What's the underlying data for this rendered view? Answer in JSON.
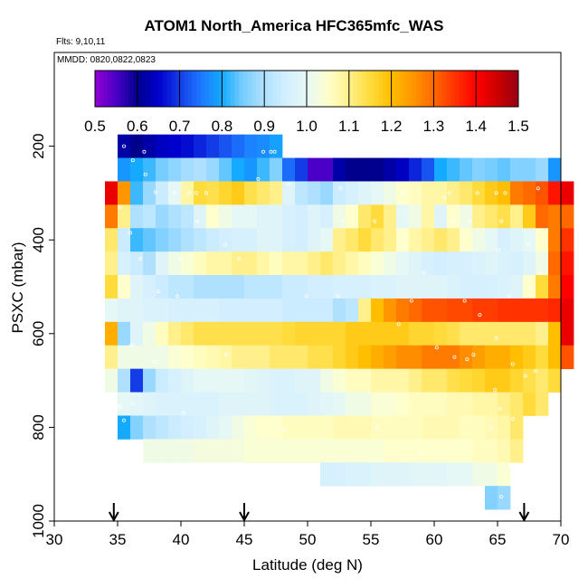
{
  "chart_data": {
    "type": "heatmap",
    "title": "ATOM1 North_America HFC365mfc_WAS",
    "flights_note": "Flts: 9,10,11",
    "dates_note": "MMDD: 0820,0822,0823",
    "xlabel": "Latitude (deg N)",
    "ylabel": "PSXC (mbar)",
    "xlim": [
      30,
      70
    ],
    "ylim": [
      1000,
      0
    ],
    "x_ticks": [
      "30",
      "35",
      "40",
      "45",
      "50",
      "55",
      "60",
      "65",
      "70"
    ],
    "y_ticks": [
      "200",
      "400",
      "600",
      "800",
      "1000"
    ],
    "colorbar": {
      "range": [
        0.5,
        1.5
      ],
      "ticks": [
        "0.5",
        "0.6",
        "0.7",
        "0.8",
        "0.9",
        "1.0",
        "1.1",
        "1.2",
        "1.3",
        "1.4",
        "1.5"
      ]
    },
    "arrow_latitudes": [
      34.7,
      45,
      67.1
    ],
    "bin_size": {
      "lat": 1,
      "pressure_mbar": 50
    },
    "rows": [
      {
        "p_top": 175,
        "p_bot": 225,
        "lat0": 35,
        "values": [
          0.62,
          0.6,
          0.62,
          0.64,
          0.65,
          0.66,
          0.68,
          0.7,
          0.72,
          0.74,
          0.76,
          0.77,
          0.79
        ]
      },
      {
        "p_top": 225,
        "p_bot": 275,
        "lat0": 35,
        "values": [
          0.78,
          0.8,
          0.82,
          0.85,
          0.87,
          0.89,
          0.9,
          0.88,
          0.84,
          0.8,
          0.78,
          0.82,
          0.86,
          0.74,
          0.7,
          0.55,
          0.55,
          0.62,
          0.6,
          0.6,
          0.6,
          0.62,
          0.64,
          0.68,
          0.72,
          0.8,
          0.82,
          0.84,
          0.86,
          0.85,
          0.84,
          0.86,
          0.86,
          0.88,
          0.78
        ]
      },
      {
        "p_top": 275,
        "p_bot": 325,
        "lat0": 34,
        "values": [
          1.42,
          1.25,
          0.82,
          0.88,
          0.94,
          1.0,
          1.08,
          1.15,
          1.14,
          1.16,
          1.18,
          1.14,
          1.12,
          1.1,
          0.98,
          0.92,
          0.9,
          0.88,
          0.94,
          0.96,
          0.98,
          1.0,
          1.02,
          1.05,
          1.06,
          1.08,
          1.08,
          1.1,
          1.12,
          1.15,
          1.18,
          1.2,
          1.28,
          1.3,
          1.32,
          1.38,
          1.42
        ]
      },
      {
        "p_top": 325,
        "p_bot": 375,
        "lat0": 34,
        "values": [
          1.28,
          1.1,
          0.9,
          0.92,
          0.88,
          0.9,
          0.92,
          0.98,
          1.05,
          1.02,
          1.0,
          1.0,
          0.98,
          0.98,
          0.96,
          0.95,
          0.98,
          0.96,
          1.02,
          1.05,
          1.12,
          1.15,
          1.1,
          1.0,
          1.02,
          1.08,
          0.98,
          1.05,
          1.02,
          1.1,
          1.12,
          1.14,
          1.1,
          1.18,
          1.3,
          1.28,
          1.3
        ]
      },
      {
        "p_top": 375,
        "p_bot": 425,
        "lat0": 34,
        "values": [
          1.12,
          0.94,
          0.82,
          0.84,
          0.86,
          0.88,
          0.9,
          0.92,
          0.94,
          0.95,
          0.96,
          0.96,
          0.98,
          0.98,
          0.96,
          0.95,
          0.98,
          1.0,
          1.1,
          1.12,
          1.15,
          1.12,
          1.1,
          1.05,
          1.08,
          1.1,
          1.12,
          1.1,
          1.05,
          1.02,
          1.0,
          0.96,
          0.98,
          1.0,
          1.05,
          1.28,
          1.35
        ]
      },
      {
        "p_top": 425,
        "p_bot": 475,
        "lat0": 34,
        "values": [
          1.1,
          0.96,
          0.94,
          0.9,
          0.98,
          1.02,
          1.04,
          1.06,
          1.08,
          1.08,
          1.1,
          1.1,
          1.08,
          1.06,
          1.08,
          1.08,
          1.1,
          1.12,
          1.1,
          1.08,
          1.06,
          1.04,
          1.02,
          1.0,
          0.98,
          0.96,
          0.95,
          0.96,
          0.96,
          0.97,
          0.98,
          0.97,
          0.96,
          0.98,
          1.02,
          1.3,
          1.38
        ]
      },
      {
        "p_top": 475,
        "p_bot": 525,
        "lat0": 34,
        "values": [
          1.15,
          1.05,
          0.98,
          0.96,
          0.94,
          0.92,
          0.92,
          0.9,
          0.9,
          0.9,
          0.9,
          0.92,
          0.92,
          0.92,
          0.94,
          0.94,
          0.95,
          0.95,
          0.96,
          0.96,
          0.96,
          0.97,
          0.97,
          0.98,
          0.98,
          0.98,
          0.98,
          0.97,
          0.96,
          0.96,
          0.96,
          0.97,
          0.98,
          1.05,
          1.15,
          1.28,
          1.4
        ]
      },
      {
        "p_top": 525,
        "p_bot": 575,
        "lat0": 34,
        "values": [
          1.0,
          0.98,
          0.98,
          0.97,
          0.97,
          0.96,
          0.96,
          0.96,
          0.96,
          0.95,
          0.95,
          0.95,
          0.95,
          0.95,
          0.94,
          0.94,
          0.94,
          0.94,
          0.9,
          0.92,
          1.1,
          1.2,
          1.25,
          1.28,
          1.3,
          1.32,
          1.32,
          1.33,
          1.33,
          1.34,
          1.34,
          1.35,
          1.35,
          1.35,
          1.35,
          1.36,
          1.42
        ]
      },
      {
        "p_top": 575,
        "p_bot": 625,
        "lat0": 34,
        "values": [
          1.22,
          0.88,
          0.98,
          1.02,
          1.06,
          1.1,
          1.12,
          1.14,
          1.14,
          1.14,
          1.14,
          1.14,
          1.14,
          1.14,
          1.15,
          1.16,
          1.16,
          1.16,
          1.16,
          1.18,
          1.18,
          1.18,
          1.18,
          1.18,
          1.16,
          1.16,
          1.15,
          1.14,
          1.12,
          1.12,
          1.12,
          1.12,
          1.12,
          1.12,
          1.1,
          1.2,
          1.42
        ]
      },
      {
        "p_top": 625,
        "p_bot": 675,
        "lat0": 34,
        "values": [
          1.1,
          1.02,
          1.02,
          1.02,
          1.02,
          1.04,
          1.05,
          1.06,
          1.07,
          1.08,
          1.1,
          1.1,
          1.1,
          1.12,
          1.12,
          1.12,
          1.14,
          1.14,
          1.16,
          1.18,
          1.2,
          1.22,
          1.24,
          1.26,
          1.26,
          1.28,
          1.28,
          1.28,
          1.26,
          1.24,
          1.22,
          1.22,
          1.2,
          1.18,
          1.15,
          1.2,
          1.32
        ]
      },
      {
        "p_top": 675,
        "p_bot": 725,
        "lat0": 34,
        "values": [
          1.02,
          0.9,
          0.7,
          0.88,
          0.94,
          0.96,
          0.98,
          1.0,
          1.0,
          1.0,
          1.0,
          0.99,
          0.98,
          0.97,
          0.97,
          0.98,
          0.98,
          1.02,
          1.04,
          1.06,
          1.06,
          1.08,
          1.08,
          1.08,
          1.1,
          1.12,
          1.12,
          1.14,
          1.15,
          1.16,
          1.18,
          1.18,
          1.16,
          1.14,
          1.12,
          1.15
        ]
      },
      {
        "p_top": 725,
        "p_bot": 775,
        "lat0": 35,
        "values": [
          1.0,
          0.99,
          0.98,
          0.97,
          0.97,
          0.97,
          0.97,
          0.97,
          0.98,
          0.98,
          0.98,
          0.98,
          0.97,
          0.97,
          0.97,
          0.98,
          0.99,
          1.0,
          1.02,
          1.02,
          1.04,
          1.04,
          1.05,
          1.06,
          1.06,
          1.06,
          1.07,
          1.07,
          1.08,
          1.08,
          1.1,
          1.12,
          1.15,
          1.12
        ]
      },
      {
        "p_top": 775,
        "p_bot": 825,
        "lat0": 35,
        "values": [
          0.8,
          0.86,
          0.9,
          0.92,
          0.94,
          0.95,
          0.96,
          0.98,
          1.0,
          1.02,
          1.04,
          1.05,
          1.05,
          1.06,
          1.06,
          1.06,
          1.06,
          1.07,
          1.07,
          1.07,
          1.06,
          1.06,
          1.06,
          1.06,
          1.07,
          1.07,
          1.07,
          1.06,
          1.06,
          1.07,
          1.08,
          1.12
        ]
      },
      {
        "p_top": 825,
        "p_bot": 875,
        "lat0": 37,
        "values": [
          1.02,
          1.02,
          1.02,
          1.02,
          1.03,
          1.03,
          1.03,
          1.03,
          1.04,
          1.04,
          1.04,
          1.04,
          1.04,
          1.04,
          1.04,
          1.04,
          1.04,
          1.04,
          1.04,
          1.05,
          1.05,
          1.05,
          1.05,
          1.05,
          1.05,
          1.05,
          1.06,
          1.06,
          1.07,
          1.1
        ]
      },
      {
        "p_top": 875,
        "p_bot": 925,
        "lat0": 51,
        "values": [
          0.96,
          0.96,
          0.97,
          0.97,
          0.98,
          0.98,
          0.98,
          0.99,
          0.99,
          0.99,
          1.0,
          1.0,
          1.02,
          1.02,
          1.04
        ]
      },
      {
        "p_top": 925,
        "p_bot": 975,
        "lat0": 64,
        "values": [
          0.86,
          0.88
        ]
      }
    ],
    "markers": [
      [
        35.5,
        200
      ],
      [
        37.1,
        212
      ],
      [
        36.2,
        230
      ],
      [
        37.2,
        260
      ],
      [
        46.5,
        212
      ],
      [
        47.1,
        212
      ],
      [
        47.4,
        212
      ],
      [
        39.5,
        300
      ],
      [
        40.6,
        300
      ],
      [
        41.2,
        300
      ],
      [
        42.0,
        300
      ],
      [
        38.0,
        298
      ],
      [
        46.1,
        270
      ],
      [
        48.5,
        280
      ],
      [
        52.6,
        290
      ],
      [
        57.5,
        300
      ],
      [
        61.2,
        300
      ],
      [
        63.4,
        300
      ],
      [
        64.9,
        300
      ],
      [
        65.6,
        300
      ],
      [
        68.2,
        290
      ],
      [
        35.2,
        330
      ],
      [
        41.3,
        360
      ],
      [
        52.8,
        360
      ],
      [
        55.3,
        360
      ],
      [
        60.8,
        310
      ],
      [
        61.5,
        360
      ],
      [
        62.8,
        360
      ],
      [
        65.3,
        360
      ],
      [
        36.0,
        385
      ],
      [
        36.8,
        440
      ],
      [
        40.0,
        440
      ],
      [
        43.5,
        410
      ],
      [
        44.6,
        440
      ],
      [
        59.2,
        470
      ],
      [
        65.1,
        420
      ],
      [
        67.4,
        410
      ],
      [
        68.4,
        470
      ],
      [
        38.2,
        510
      ],
      [
        39.7,
        520
      ],
      [
        49.9,
        520
      ],
      [
        52.4,
        520
      ],
      [
        58.2,
        530
      ],
      [
        62.4,
        530
      ],
      [
        65.9,
        520
      ],
      [
        63.6,
        560
      ],
      [
        57.2,
        580
      ],
      [
        60.2,
        630
      ],
      [
        61.6,
        650
      ],
      [
        62.6,
        655
      ],
      [
        63.1,
        645
      ],
      [
        64.9,
        610
      ],
      [
        36.1,
        625
      ],
      [
        43.6,
        645
      ],
      [
        37.9,
        660
      ],
      [
        38.2,
        660
      ],
      [
        66.2,
        665
      ],
      [
        35.2,
        755
      ],
      [
        36.2,
        750
      ],
      [
        40.2,
        770
      ],
      [
        64.8,
        720
      ],
      [
        65.2,
        760
      ],
      [
        67.2,
        690
      ],
      [
        68.0,
        680
      ],
      [
        35.5,
        785
      ],
      [
        48.2,
        805
      ],
      [
        55.5,
        800
      ],
      [
        64.5,
        800
      ],
      [
        66.2,
        782
      ],
      [
        58.9,
        855
      ],
      [
        66.0,
        880
      ],
      [
        65.3,
        948
      ]
    ]
  }
}
